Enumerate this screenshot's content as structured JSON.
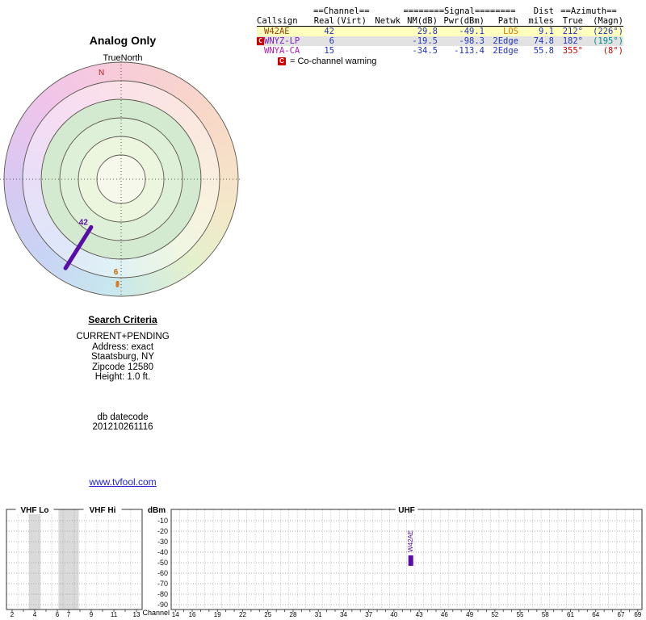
{
  "page": {
    "title": "Analog Only",
    "link": "www.tvfool.com"
  },
  "polar": {
    "subtitle": "TrueNorth",
    "north_label": "N",
    "signals": [
      {
        "channel": "42",
        "azimuth_true_deg": 212,
        "color": "#5a0ca8",
        "label_color": "#5a0ca8",
        "r_inner": 70,
        "r_outer": 130,
        "width": 5,
        "label_offset": [
          -4,
          -3
        ],
        "label_anchor": "end"
      },
      {
        "channel": "6",
        "azimuth_true_deg": 182,
        "color": "#e07820",
        "label_color": "#cc6600",
        "r_inner": 128,
        "r_outer": 132,
        "width": 4,
        "label_offset": [
          -2,
          -10
        ],
        "label_anchor": "middle"
      }
    ]
  },
  "table": {
    "group_headers": [
      "==Channel==",
      "========Signal========",
      "Dist",
      "==Azimuth=="
    ],
    "columns": [
      "Callsign",
      "Real",
      "(Virt)",
      "Netwk",
      "NM(dB)",
      "Pwr(dBm)",
      "Path",
      "miles",
      "True",
      "(Magn)"
    ],
    "rows": [
      {
        "flag": "",
        "bg": "#ffffbe",
        "cells": {
          "callsign": {
            "text": "W42AE",
            "color": "#993f00"
          },
          "real": {
            "text": "42",
            "color": "#2233bb"
          },
          "virt": {
            "text": "",
            "color": "#2233bb"
          },
          "netwk": {
            "text": "",
            "color": "#000000"
          },
          "nm": {
            "text": "29.8",
            "color": "#2233bb"
          },
          "pwr": {
            "text": "-49.1",
            "color": "#2233bb"
          },
          "path": {
            "text": "LOS",
            "color": "#dd7700"
          },
          "miles": {
            "text": "9.1",
            "color": "#2233bb"
          },
          "true": {
            "text": "212°",
            "color": "#2233bb"
          },
          "magn": {
            "text": "(226°)",
            "color": "#2233bb"
          }
        }
      },
      {
        "flag": "C",
        "bg": "#e2e2e2",
        "cells": {
          "callsign": {
            "text": "WNYZ-LP",
            "color": "#7a1fc0"
          },
          "real": {
            "text": "6",
            "color": "#2233bb"
          },
          "virt": {
            "text": "",
            "color": "#2233bb"
          },
          "netwk": {
            "text": "",
            "color": "#000000"
          },
          "nm": {
            "text": "-19.5",
            "color": "#2233bb"
          },
          "pwr": {
            "text": "-98.3",
            "color": "#2233bb"
          },
          "path": {
            "text": "2Edge",
            "color": "#2233bb"
          },
          "miles": {
            "text": "74.8",
            "color": "#2233bb"
          },
          "true": {
            "text": "182°",
            "color": "#2233bb"
          },
          "magn": {
            "text": "(195°)",
            "color": "#008b8b"
          }
        }
      },
      {
        "flag": "",
        "bg": "#ffffff",
        "cells": {
          "callsign": {
            "text": "WNYA-CA",
            "color": "#b020b0"
          },
          "real": {
            "text": "15",
            "color": "#2233bb"
          },
          "virt": {
            "text": "",
            "color": "#2233bb"
          },
          "netwk": {
            "text": "",
            "color": "#000000"
          },
          "nm": {
            "text": "-34.5",
            "color": "#2233bb"
          },
          "pwr": {
            "text": "-113.4",
            "color": "#2233bb"
          },
          "path": {
            "text": "2Edge",
            "color": "#2233bb"
          },
          "miles": {
            "text": "55.8",
            "color": "#2233bb"
          },
          "true": {
            "text": "355°",
            "color": "#cc0000"
          },
          "magn": {
            "text": "(8°)",
            "color": "#cc0000"
          }
        }
      }
    ],
    "legend": {
      "flag": "C",
      "text": "= Co-channel warning"
    }
  },
  "search": {
    "heading": "Search Criteria",
    "lines": [
      "CURRENT+PENDING",
      "Address: exact",
      "Staatsburg, NY",
      "Zipcode 12580",
      "Height: 1.0 ft.",
      "",
      "",
      "",
      "db datecode",
      "201210261116"
    ]
  },
  "chart_data": {
    "type": "bar",
    "title": "",
    "ylabel": "dBm",
    "xlabel": "Channel",
    "ylim": [
      -95,
      -5
    ],
    "y_ticks": [
      -10,
      -20,
      -30,
      -40,
      -50,
      -60,
      -70,
      -80,
      -90
    ],
    "sections": [
      {
        "label": "VHF Lo",
        "ch_start": 2,
        "ch_end": 6
      },
      {
        "label": "VHF Hi",
        "ch_start": 7,
        "ch_end": 13
      },
      {
        "label": "UHF",
        "ch_start": 14,
        "ch_end": 69
      }
    ],
    "vhf_labeled_channels": [
      2,
      4,
      6,
      7,
      9,
      11,
      13
    ],
    "uhf_labeled_channels": [
      14,
      16,
      19,
      22,
      25,
      28,
      31,
      34,
      37,
      40,
      43,
      46,
      49,
      52,
      55,
      58,
      61,
      64,
      67,
      69
    ],
    "signals": [
      {
        "label": "W42AE",
        "channel": 42,
        "pwr_dbm": -49.1,
        "bar_top_dbm": -43,
        "bar_bottom_dbm": -53,
        "color": "#5a0ca8"
      }
    ],
    "shaded_bands": [
      {
        "from_ch": 4.0,
        "to_ch": 5.0
      },
      {
        "from_ch": 6.6,
        "to_ch": 8.4
      }
    ]
  }
}
